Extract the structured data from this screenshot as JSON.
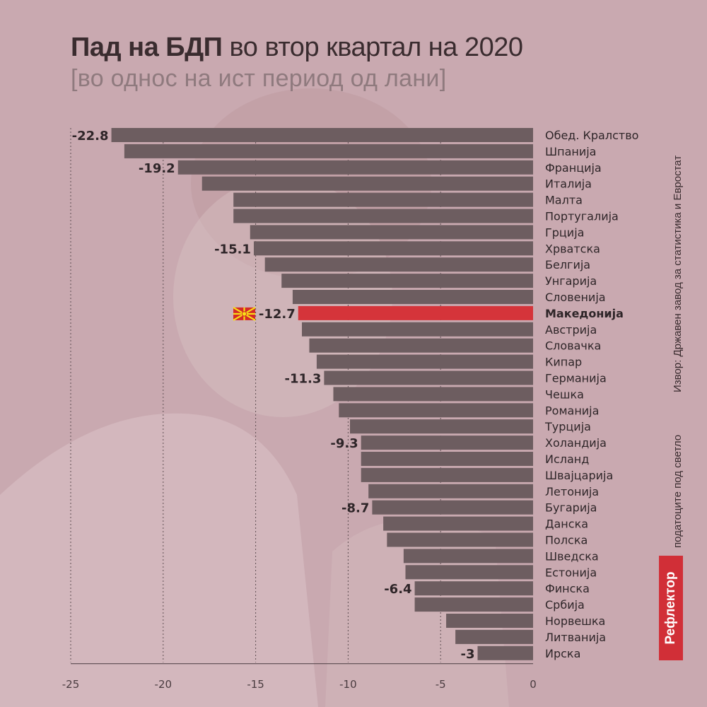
{
  "title": {
    "bold": "Пад на БДП",
    "regular": " во втор квартал на 2020",
    "subtitle": "[во однос на ист период од лани]"
  },
  "source": "Извор: Државен завод за статистика и Евростат",
  "note": "податоците под светло",
  "brand": "Рефлектор",
  "colors": {
    "bar": "#6d5d60",
    "highlight": "#d5343a",
    "background": "#c9a9b0"
  },
  "chart_data": {
    "type": "bar",
    "orientation": "horizontal",
    "title": "Пад на БДП во втор квартал на 2020",
    "subtitle": "[во однос на ист период од лани]",
    "xlim": [
      -25,
      0
    ],
    "ticks": [
      -25,
      -20,
      -15,
      -10,
      -5,
      0
    ],
    "grid": true,
    "highlight": "Македонија",
    "categories": [
      "Обед. Кралство",
      "Шпанија",
      "Франција",
      "Италија",
      "Малта",
      "Португалија",
      "Грција",
      "Хрватска",
      "Белгија",
      "Унгарија",
      "Словенија",
      "Македонија",
      "Австрија",
      "Словачка",
      "Кипар",
      "Германија",
      "Чешка",
      "Романија",
      "Турција",
      "Холандија",
      "Исланд",
      "Швајцарија",
      "Летонија",
      "Бугарија",
      "Данска",
      "Полска",
      "Шведска",
      "Естонија",
      "Финска",
      "Србија",
      "Норвешка",
      "Литванија",
      "Ирска"
    ],
    "values": [
      -22.8,
      -22.1,
      -19.2,
      -17.9,
      -16.2,
      -16.2,
      -15.3,
      -15.1,
      -14.5,
      -13.6,
      -13.0,
      -12.7,
      -12.5,
      -12.1,
      -11.7,
      -11.3,
      -10.8,
      -10.5,
      -9.9,
      -9.3,
      -9.3,
      -9.3,
      -8.9,
      -8.7,
      -8.1,
      -7.9,
      -7.0,
      -6.9,
      -6.4,
      -6.4,
      -4.7,
      -4.2,
      -3.0
    ],
    "labels": {
      "0": "-22.8",
      "2": "-19.2",
      "7": "-15.1",
      "11": "-12.7",
      "15": "-11.3",
      "19": "-9.3",
      "23": "-8.7",
      "28": "-6.4",
      "32": "-3"
    }
  }
}
